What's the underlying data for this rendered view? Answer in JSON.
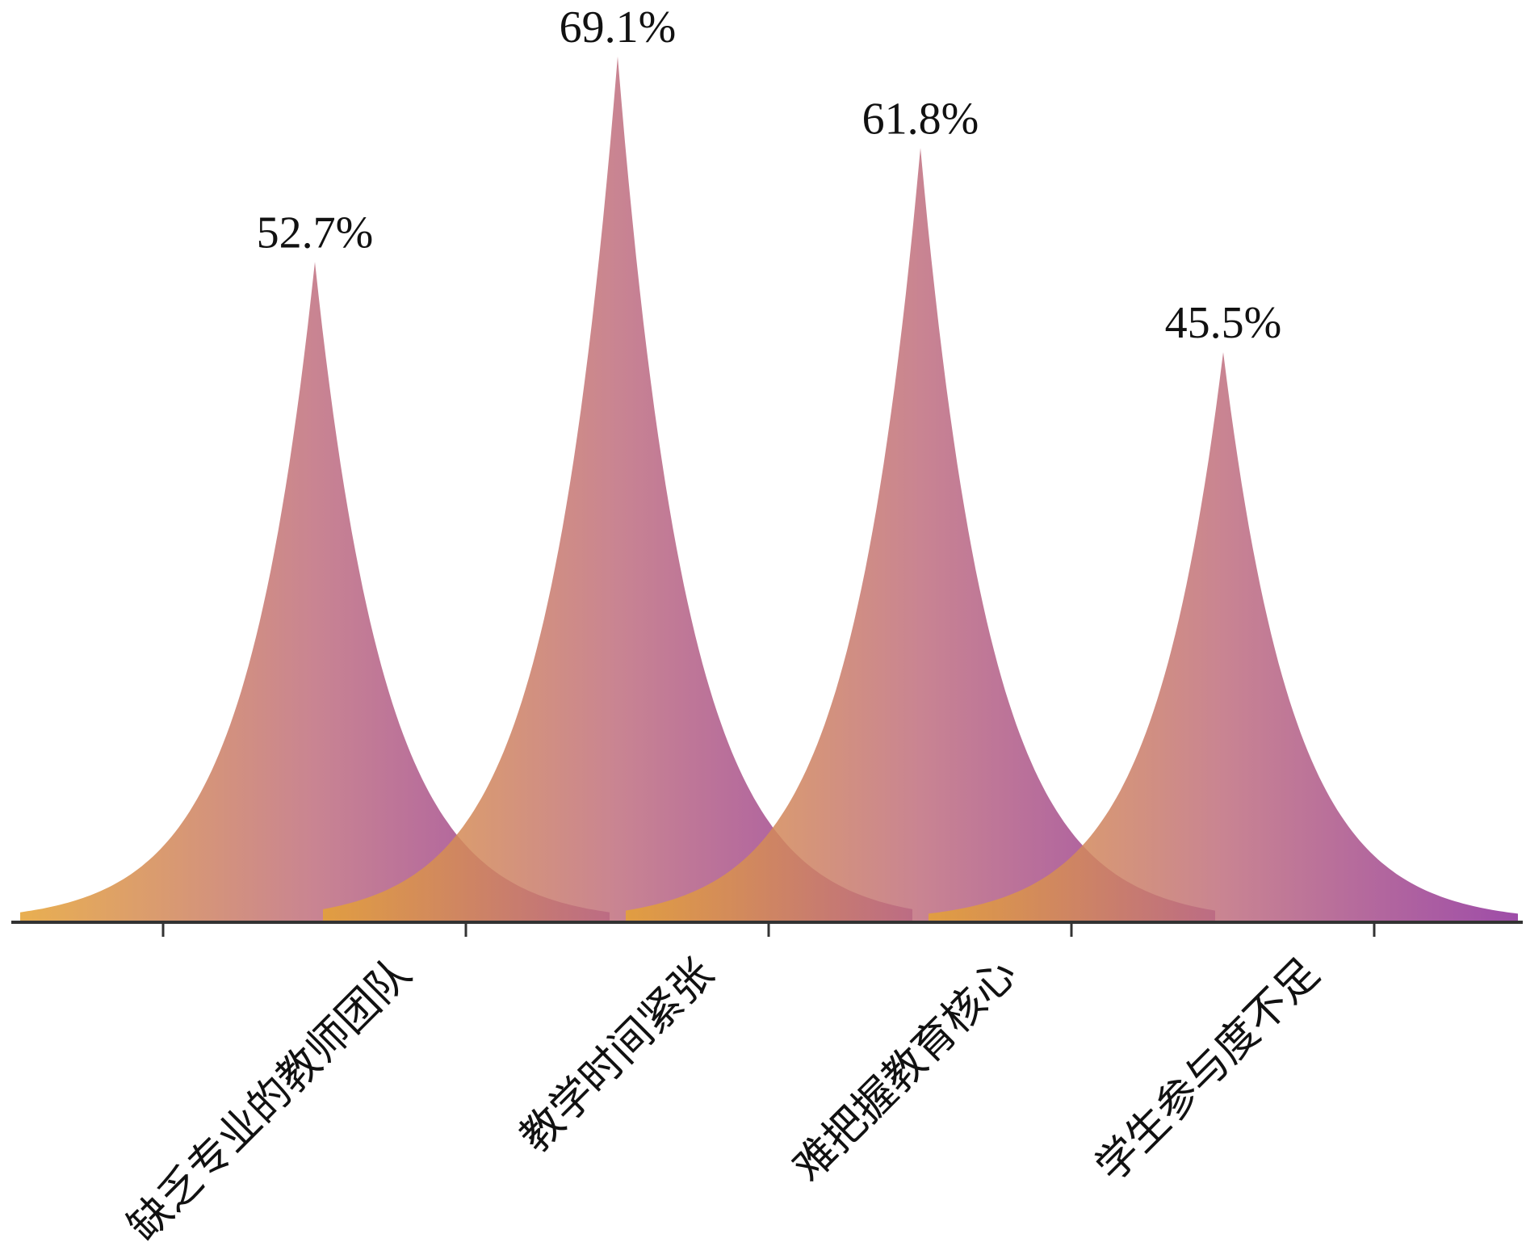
{
  "chart_data": {
    "type": "area",
    "title": "",
    "xlabel": "",
    "ylabel": "",
    "ylim": [
      0,
      80
    ],
    "grid": false,
    "legend": "none",
    "categories": [
      "缺乏专业的教师团队",
      "教学时间紧张",
      "难把握教育核心",
      "学生参与度不足"
    ],
    "values": [
      52.7,
      69.1,
      61.8,
      45.5
    ],
    "value_labels": [
      "52.7%",
      "69.1%",
      "61.8%",
      "45.5%"
    ],
    "colors": {
      "gradient_left": "#e5a234",
      "gradient_mid": "#c07080",
      "gradient_right": "#8e2f9a",
      "axis": "#333333"
    }
  }
}
